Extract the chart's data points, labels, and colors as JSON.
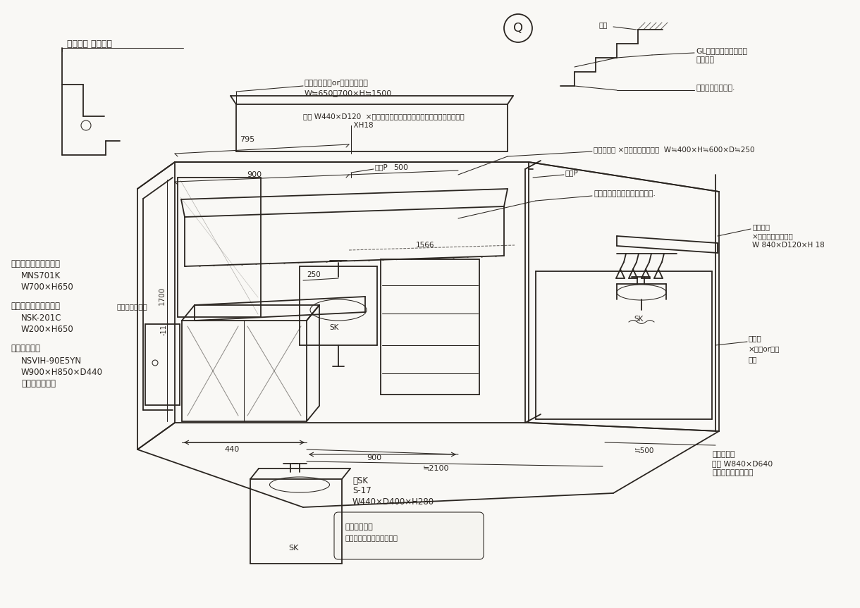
{
  "bg_color": "#f8f7f4",
  "ink_color": "#2a2520",
  "annotations": {
    "top_left_label": "棚型電面 間接照明",
    "storage_label": "収納棚（造作or既製品検討）",
    "storage_dims": "W≒650～700×H≒1500",
    "shelf_label": "棚板 W440×D120  ×ラミン、ポリ化粧板、下部ハンガーパイプ取付",
    "shelf_dims": "                      XH18",
    "builtin_label": "埋込棚造作 ×ラミンポリ化粧板  W≒400×H≒600×D≒250",
    "faucet_label": "水栓取出位置、施工時要確認.",
    "shelf_board_label": "棚板取付",
    "shelf_board_detail": "×ラミンポリ化粧板",
    "shelf_board_dims": "W 840×D120×H 18",
    "dry_p1": "物干P",
    "dry_p2": "物干P",
    "washing_label": "洗濯機",
    "washing_detail": "×既設or新規",
    "washing_detail2": "検討",
    "washing_pan_label": "洗濯機パン",
    "washing_pan_dims": "最大 W840×D640",
    "washing_pan_note": "洗濯機機種選定の上",
    "mirror_label": "・ミラーキャビネット",
    "mirror_model": "MNS701K",
    "mirror_dims": "W700×H650",
    "middle_label": "・ミドルキャビネット",
    "middle_note2": "化粧スレート板",
    "middle_model": "NSK-201C",
    "middle_dims": "W200×H650",
    "vanity_label": "・変面化粧台",
    "vanity_model": "NSVIH-90E5YN",
    "vanity_dims": "W900×H850×D440",
    "vanity_note": "（実径形仕様）",
    "sk_label": "・SK",
    "sk_model": "S-17",
    "sk_dims": "W440×D400×H280",
    "sk_note1": "配管の関係上",
    "sk_note2": "カウンター造作の可能性あ",
    "dim_795": "795",
    "dim_900": "900",
    "dim_500": "500",
    "dim_250": "250",
    "dim_1566": "1566",
    "dim_1700": "1700",
    "dim_11": "-11",
    "dim_440": "440",
    "dim_900b": "900",
    "dim_2100": "≒2100",
    "dim_500b": "≒500",
    "q_label": "Q",
    "gl_label": "GL仕上は現状のままか",
    "gl_label2": "どうか？",
    "height_label": "高さを確認したい.",
    "frame_label": "枠型",
    "sk_bottom": "SK",
    "sk_right": "SK"
  }
}
